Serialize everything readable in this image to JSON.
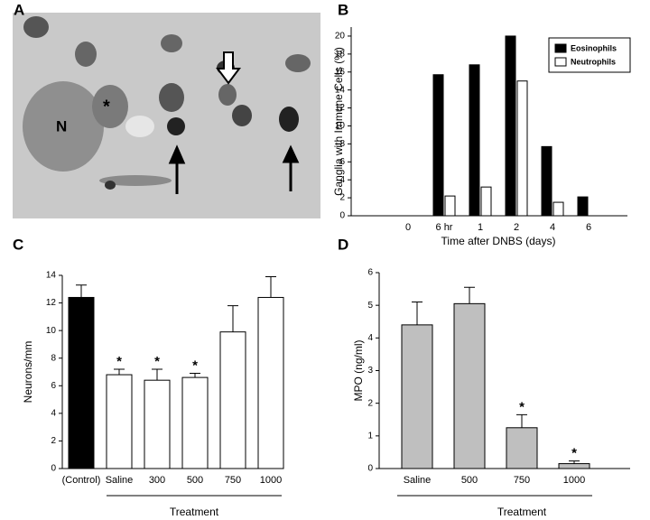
{
  "micrograph": {
    "panel": "A",
    "labels": [
      "N",
      "*"
    ]
  },
  "chart_data": [
    {
      "type": "bar",
      "panel": "B",
      "ylabel": "Ganglia with Immune Cells (%)",
      "xlabel": "Time after DNBS (days)",
      "categories": [
        "0",
        "6 hr",
        "1",
        "2",
        "4",
        "6"
      ],
      "series": [
        {
          "name": "Eosinophils",
          "color": "#000000",
          "values": [
            0,
            15.7,
            16.8,
            20,
            7.7,
            2.1
          ]
        },
        {
          "name": "Neutrophils",
          "color": "#ffffff",
          "values": [
            0,
            2.2,
            3.2,
            15,
            1.5,
            0
          ]
        }
      ],
      "ylim": [
        0,
        21
      ],
      "yticks": [
        0,
        2,
        4,
        6,
        8,
        10,
        12,
        14,
        16,
        18,
        20
      ],
      "legend": "upper right"
    },
    {
      "type": "errorbar",
      "panel": "C",
      "ylabel": "Neurons/mm",
      "xlabel": "Treatment",
      "categories": [
        "(Control)",
        "Saline",
        "300",
        "500",
        "750",
        "1000"
      ],
      "values": [
        12.4,
        6.8,
        6.4,
        6.6,
        9.9,
        12.4
      ],
      "errors": [
        0.9,
        0.4,
        0.8,
        0.3,
        1.9,
        1.5
      ],
      "colors": [
        "#000000",
        "#ffffff",
        "#ffffff",
        "#ffffff",
        "#ffffff",
        "#ffffff"
      ],
      "markers": [
        null,
        "*",
        "*",
        "*",
        null,
        null
      ],
      "ylim": [
        0,
        14
      ],
      "yticks": [
        0,
        2,
        4,
        6,
        8,
        10,
        12,
        14
      ]
    },
    {
      "type": "errorbar",
      "panel": "D",
      "ylabel": "MPO (ng/ml)",
      "xlabel": "Treatment",
      "categories": [
        "Saline",
        "500",
        "750",
        "1000"
      ],
      "values": [
        4.4,
        5.05,
        1.25,
        0.15
      ],
      "errors": [
        0.7,
        0.5,
        0.4,
        0.08
      ],
      "colors": [
        "#bfbfbf",
        "#bfbfbf",
        "#bfbfbf",
        "#bfbfbf"
      ],
      "markers": [
        null,
        null,
        "*",
        "*"
      ],
      "ylim": [
        0,
        6
      ],
      "yticks": [
        0,
        1,
        2,
        3,
        4,
        5,
        6
      ]
    }
  ]
}
